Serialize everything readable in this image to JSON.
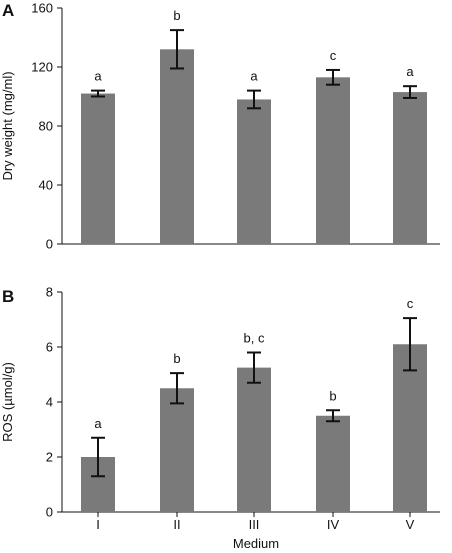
{
  "colors": {
    "bar": "#7a7a7a",
    "axis": "#111111",
    "text": "#111111"
  },
  "chart_data": [
    {
      "panel": "A",
      "type": "bar",
      "categories": [
        "I",
        "II",
        "III",
        "IV",
        "V"
      ],
      "values": [
        102,
        132,
        98,
        113,
        103
      ],
      "errors": [
        2,
        13,
        6,
        5,
        4
      ],
      "significance": [
        "a",
        "b",
        "a",
        "c",
        "a"
      ],
      "title": "",
      "xlabel": "",
      "ylabel": "Dry weight (mg/ml)",
      "ylim": [
        0,
        160
      ],
      "yticks": [
        0,
        40,
        80,
        120,
        160
      ],
      "show_xticklabels": false,
      "grid": false,
      "legend": "none"
    },
    {
      "panel": "B",
      "type": "bar",
      "categories": [
        "I",
        "II",
        "III",
        "IV",
        "V"
      ],
      "values": [
        2.0,
        4.5,
        5.25,
        3.5,
        6.1
      ],
      "errors": [
        0.7,
        0.55,
        0.55,
        0.2,
        0.95
      ],
      "significance": [
        "a",
        "b",
        "b, c",
        "b",
        "c"
      ],
      "title": "",
      "xlabel": "Medium",
      "ylabel": "ROS (µmol/g)",
      "ylim": [
        0,
        8
      ],
      "yticks": [
        0,
        2,
        4,
        6,
        8
      ],
      "show_xticklabels": true,
      "grid": false,
      "legend": "none"
    }
  ]
}
